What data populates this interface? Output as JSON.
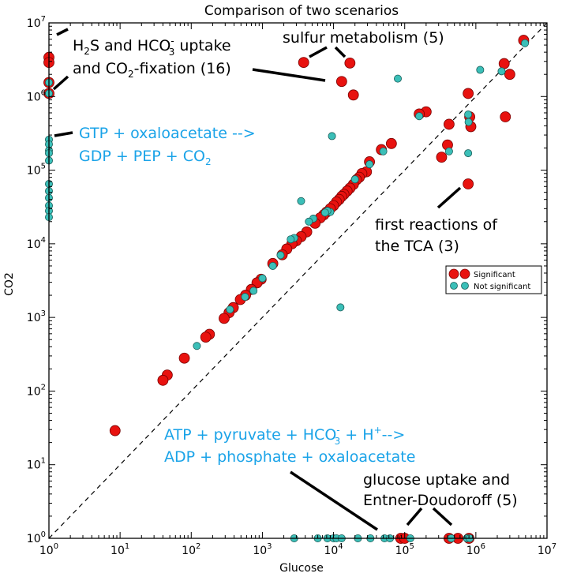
{
  "chart_data": {
    "type": "scatter",
    "title": "Comparison of two scenarios",
    "xlabel": "Glucose",
    "ylabel": "CO2",
    "xscale": "log",
    "yscale": "log",
    "xlim": [
      1,
      10000000
    ],
    "ylim": [
      1,
      10000000
    ],
    "grid": false,
    "x_ticks": [
      {
        "value": 1,
        "base": "10",
        "exp": "0"
      },
      {
        "value": 10,
        "base": "10",
        "exp": "1"
      },
      {
        "value": 100,
        "base": "10",
        "exp": "2"
      },
      {
        "value": 1000,
        "base": "10",
        "exp": "3"
      },
      {
        "value": 10000,
        "base": "10",
        "exp": "4"
      },
      {
        "value": 100000,
        "base": "10",
        "exp": "5"
      },
      {
        "value": 1000000,
        "base": "10",
        "exp": "6"
      },
      {
        "value": 10000000,
        "base": "10",
        "exp": "7"
      }
    ],
    "y_ticks": [
      {
        "value": 1,
        "base": "10",
        "exp": "0"
      },
      {
        "value": 10,
        "base": "10",
        "exp": "1"
      },
      {
        "value": 100,
        "base": "10",
        "exp": "2"
      },
      {
        "value": 1000,
        "base": "10",
        "exp": "3"
      },
      {
        "value": 10000,
        "base": "10",
        "exp": "4"
      },
      {
        "value": 100000,
        "base": "10",
        "exp": "5"
      },
      {
        "value": 1000000,
        "base": "10",
        "exp": "6"
      },
      {
        "value": 10000000,
        "base": "10",
        "exp": "7"
      }
    ],
    "reference_line": {
      "style": "dashed",
      "from": [
        1,
        1
      ],
      "to": [
        10000000,
        10000000
      ]
    },
    "legend": {
      "position": "right",
      "entries": [
        {
          "label": "Significant",
          "color": "#e8120f"
        },
        {
          "label": "Not significant",
          "color": "#3bbfb8"
        }
      ]
    },
    "series": [
      {
        "name": "Significant",
        "color": "#e8120f",
        "points": [
          [
            1,
            3400000
          ],
          [
            1,
            2900000
          ],
          [
            1,
            1550000
          ],
          [
            1,
            1100000
          ],
          [
            3800,
            2900000
          ],
          [
            17000,
            2850000
          ],
          [
            13000,
            1600000
          ],
          [
            19000,
            1050000
          ],
          [
            4700000,
            5800000
          ],
          [
            2500000,
            2800000
          ],
          [
            3000000,
            2000000
          ],
          [
            2600000,
            530000
          ],
          [
            780000,
            1100000
          ],
          [
            820000,
            530000
          ],
          [
            850000,
            390000
          ],
          [
            420000,
            420000
          ],
          [
            400000,
            220000
          ],
          [
            330000,
            150000
          ],
          [
            780000,
            65000
          ],
          [
            200000,
            620000
          ],
          [
            160000,
            580000
          ],
          [
            65000,
            230000
          ],
          [
            47000,
            190000
          ],
          [
            32000,
            130000
          ],
          [
            29000,
            95000
          ],
          [
            25000,
            90000
          ],
          [
            23000,
            80000
          ],
          [
            21000,
            74000
          ],
          [
            19000,
            64000
          ],
          [
            17000,
            57000
          ],
          [
            15500,
            52000
          ],
          [
            14000,
            47000
          ],
          [
            13000,
            44000
          ],
          [
            12000,
            40000
          ],
          [
            11000,
            37000
          ],
          [
            10000,
            33000
          ],
          [
            9000,
            30000
          ],
          [
            8000,
            27000
          ],
          [
            7300,
            24800
          ],
          [
            6500,
            22500
          ],
          [
            5500,
            19000
          ],
          [
            4200,
            14500
          ],
          [
            3500,
            12500
          ],
          [
            3000,
            11000
          ],
          [
            2600,
            10000
          ],
          [
            2200,
            8500
          ],
          [
            1900,
            7100
          ],
          [
            1400,
            5400
          ],
          [
            960,
            3300
          ],
          [
            840,
            2950
          ],
          [
            700,
            2400
          ],
          [
            580,
            2000
          ],
          [
            490,
            1750
          ],
          [
            390,
            1360
          ],
          [
            340,
            1160
          ],
          [
            290,
            970
          ],
          [
            180,
            590
          ],
          [
            160,
            540
          ],
          [
            80,
            280
          ],
          [
            46,
            165
          ],
          [
            40,
            140
          ],
          [
            8.5,
            29
          ],
          [
            88000,
            1
          ],
          [
            100000,
            1
          ],
          [
            420000,
            1
          ],
          [
            560000,
            1
          ],
          [
            800000,
            1
          ]
        ]
      },
      {
        "name": "Not significant",
        "color": "#3bbfb8",
        "points": [
          [
            1,
            1100000
          ],
          [
            1,
            1550000
          ],
          [
            1,
            260000
          ],
          [
            1,
            225000
          ],
          [
            1,
            185000
          ],
          [
            1,
            170000
          ],
          [
            1,
            135000
          ],
          [
            1,
            65000
          ],
          [
            1,
            52000
          ],
          [
            1,
            42000
          ],
          [
            1,
            33000
          ],
          [
            1,
            28000
          ],
          [
            1,
            23000
          ],
          [
            4900000,
            5300000
          ],
          [
            2300000,
            2200000
          ],
          [
            1150000,
            2300000
          ],
          [
            780000,
            570000
          ],
          [
            790000,
            450000
          ],
          [
            780000,
            170000
          ],
          [
            420000,
            180000
          ],
          [
            80000,
            1750000
          ],
          [
            160000,
            540000
          ],
          [
            9500,
            290000
          ],
          [
            12500,
            1370
          ],
          [
            3500,
            38000
          ],
          [
            9000,
            27000
          ],
          [
            8200,
            28000
          ],
          [
            7600,
            26500
          ],
          [
            5200,
            22000
          ],
          [
            4500,
            20000
          ],
          [
            2800,
            12000
          ],
          [
            2500,
            11500
          ],
          [
            1800,
            7000
          ],
          [
            1400,
            5000
          ],
          [
            1000,
            3400
          ],
          [
            750,
            2300
          ],
          [
            570,
            1900
          ],
          [
            350,
            1280
          ],
          [
            120,
            410
          ],
          [
            50000,
            180000
          ],
          [
            32000,
            120000
          ],
          [
            20000,
            75000
          ],
          [
            2800,
            1
          ],
          [
            6000,
            1
          ],
          [
            8200,
            1
          ],
          [
            10000,
            1
          ],
          [
            11000,
            1
          ],
          [
            13000,
            1
          ],
          [
            22000,
            1
          ],
          [
            33000,
            1
          ],
          [
            52000,
            1
          ],
          [
            62000,
            1
          ],
          [
            120000,
            1
          ],
          [
            450000,
            1
          ],
          [
            750000,
            1
          ],
          [
            820000,
            1
          ]
        ]
      }
    ],
    "annotations": {
      "h2s_line1_pre": "H",
      "h2s_line1_sub": "2",
      "h2s_line1_mid": "S and HCO",
      "h2s_line1_sup": "-",
      "h2s_line1_sub2": "3",
      "h2s_line1_post": " uptake",
      "h2s_line2_pre": "and CO",
      "h2s_line2_sub": "2",
      "h2s_line2_post": "-fixation (16)",
      "sulfur": "sulfur metabolism (5)",
      "gtp_line1": "GTP + oxaloacetate -->",
      "gtp_line2_pre": "GDP + PEP + CO",
      "gtp_line2_sub": "2",
      "tca_line1": "first reactions of",
      "tca_line2": "the TCA (3)",
      "atp_line1_pre": "ATP + pyruvate + HCO",
      "atp_line1_sup": "-",
      "atp_line1_sub": "3",
      "atp_line1_mid": " + H",
      "atp_line1_sup2": "+",
      "atp_line1_post": "-->",
      "atp_line2": "ADP + phosphate + oxaloacetate",
      "glucose_line1": "glucose uptake and",
      "glucose_line2": "Entner-Doudoroff (5)",
      "blue_text_color": "#1aa3e8"
    }
  }
}
